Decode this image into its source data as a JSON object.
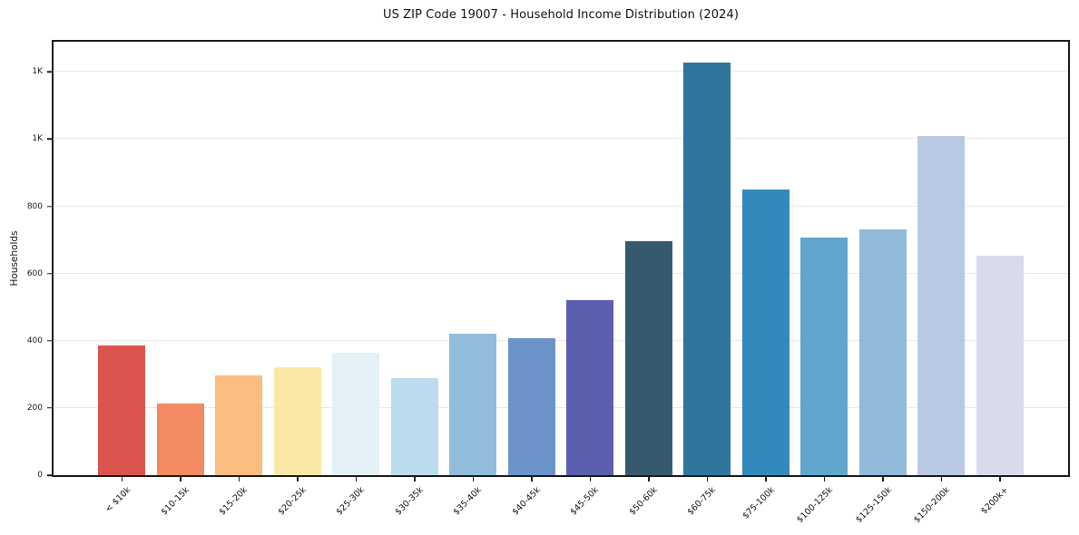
{
  "chart_data": {
    "type": "bar",
    "title": "US ZIP Code 19007 - Household Income Distribution (2024)",
    "xlabel": "",
    "ylabel": "Households",
    "categories": [
      "< $10k",
      "$10-15k",
      "$15-20k",
      "$20-25k",
      "$25-30k",
      "$30-35k",
      "$35-40k",
      "$40-45k",
      "$45-50k",
      "$50-60k",
      "$60-75k",
      "$75-100k",
      "$100-125k",
      "$125-150k",
      "$150-200k",
      "$200k+"
    ],
    "values": [
      387,
      214,
      296,
      322,
      365,
      288,
      422,
      408,
      520,
      697,
      1228,
      849,
      708,
      731,
      1010,
      653
    ],
    "bar_colors": [
      "#d9554e",
      "#f28a62",
      "#fbbd80",
      "#fce8a6",
      "#e4f1f6",
      "#bbdcec",
      "#92bcdb",
      "#6b93c8",
      "#5c5fae",
      "#355a6d",
      "#2f759e",
      "#3389bb",
      "#61a7cd",
      "#90b9da",
      "#bac9e3",
      "#d8dbea"
    ],
    "y_ticks": [
      {
        "value": 0,
        "label": "0"
      },
      {
        "value": 200,
        "label": "200"
      },
      {
        "value": 400,
        "label": "400"
      },
      {
        "value": 600,
        "label": "600"
      },
      {
        "value": 800,
        "label": "800"
      },
      {
        "value": 1000,
        "label": "1K"
      },
      {
        "value": 1200,
        "label": "1K"
      }
    ],
    "ylim": [
      0,
      1290
    ],
    "grid": "horizontal",
    "legend": "none",
    "background_color": "#ffffff",
    "spine_color": "#1c1c1c",
    "gridline_color": "#e8e8e8"
  }
}
